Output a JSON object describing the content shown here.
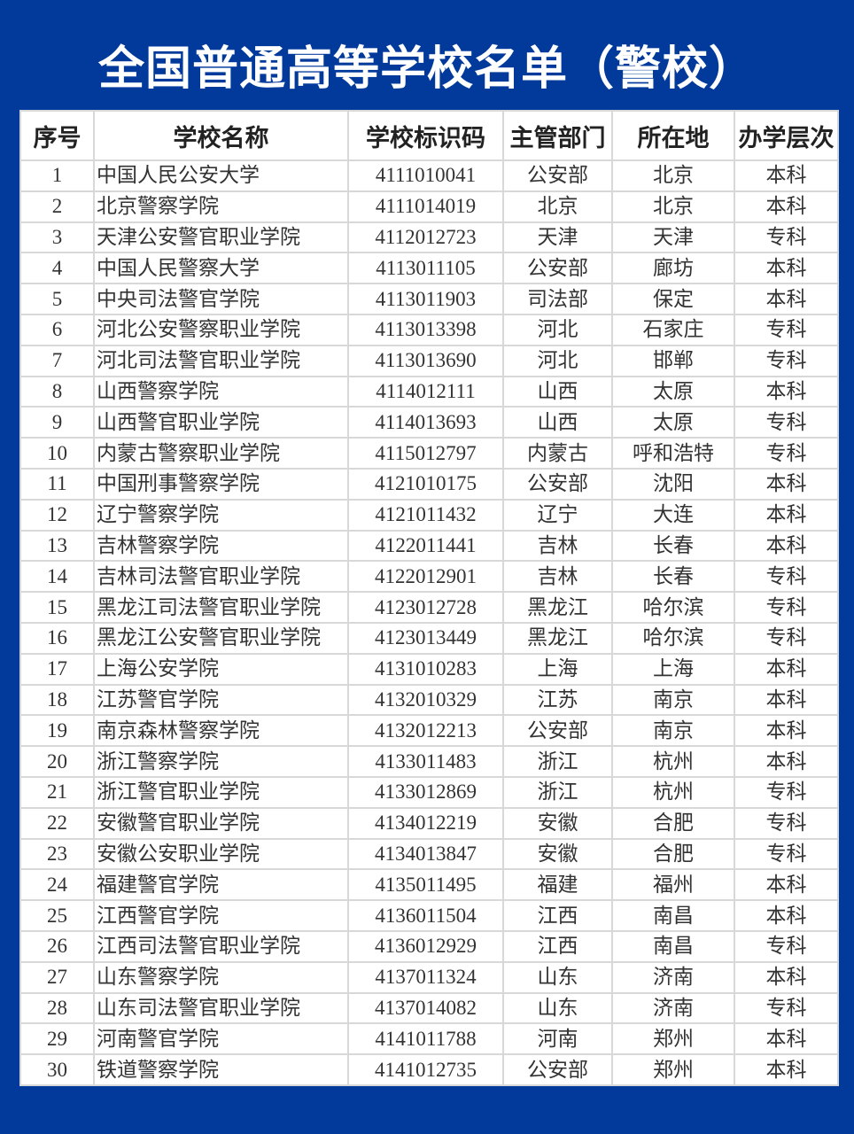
{
  "title": "全国普通高等学校名单（警校）",
  "table": {
    "headers": [
      "序号",
      "学校名称",
      "学校标识码",
      "主管部门",
      "所在地",
      "办学层次"
    ],
    "rows": [
      [
        "1",
        "中国人民公安大学",
        "4111010041",
        "公安部",
        "北京",
        "本科"
      ],
      [
        "2",
        "北京警察学院",
        "4111014019",
        "北京",
        "北京",
        "本科"
      ],
      [
        "3",
        "天津公安警官职业学院",
        "4112012723",
        "天津",
        "天津",
        "专科"
      ],
      [
        "4",
        "中国人民警察大学",
        "4113011105",
        "公安部",
        "廊坊",
        "本科"
      ],
      [
        "5",
        "中央司法警官学院",
        "4113011903",
        "司法部",
        "保定",
        "本科"
      ],
      [
        "6",
        "河北公安警察职业学院",
        "4113013398",
        "河北",
        "石家庄",
        "专科"
      ],
      [
        "7",
        "河北司法警官职业学院",
        "4113013690",
        "河北",
        "邯郸",
        "专科"
      ],
      [
        "8",
        "山西警察学院",
        "4114012111",
        "山西",
        "太原",
        "本科"
      ],
      [
        "9",
        "山西警官职业学院",
        "4114013693",
        "山西",
        "太原",
        "专科"
      ],
      [
        "10",
        "内蒙古警察职业学院",
        "4115012797",
        "内蒙古",
        "呼和浩特",
        "专科"
      ],
      [
        "11",
        "中国刑事警察学院",
        "4121010175",
        "公安部",
        "沈阳",
        "本科"
      ],
      [
        "12",
        "辽宁警察学院",
        "4121011432",
        "辽宁",
        "大连",
        "本科"
      ],
      [
        "13",
        "吉林警察学院",
        "4122011441",
        "吉林",
        "长春",
        "本科"
      ],
      [
        "14",
        "吉林司法警官职业学院",
        "4122012901",
        "吉林",
        "长春",
        "专科"
      ],
      [
        "15",
        "黑龙江司法警官职业学院",
        "4123012728",
        "黑龙江",
        "哈尔滨",
        "专科"
      ],
      [
        "16",
        "黑龙江公安警官职业学院",
        "4123013449",
        "黑龙江",
        "哈尔滨",
        "专科"
      ],
      [
        "17",
        "上海公安学院",
        "4131010283",
        "上海",
        "上海",
        "本科"
      ],
      [
        "18",
        "江苏警官学院",
        "4132010329",
        "江苏",
        "南京",
        "本科"
      ],
      [
        "19",
        "南京森林警察学院",
        "4132012213",
        "公安部",
        "南京",
        "本科"
      ],
      [
        "20",
        "浙江警察学院",
        "4133011483",
        "浙江",
        "杭州",
        "本科"
      ],
      [
        "21",
        "浙江警官职业学院",
        "4133012869",
        "浙江",
        "杭州",
        "专科"
      ],
      [
        "22",
        "安徽警官职业学院",
        "4134012219",
        "安徽",
        "合肥",
        "专科"
      ],
      [
        "23",
        "安徽公安职业学院",
        "4134013847",
        "安徽",
        "合肥",
        "专科"
      ],
      [
        "24",
        "福建警官学院",
        "4135011495",
        "福建",
        "福州",
        "本科"
      ],
      [
        "25",
        "江西警官学院",
        "4136011504",
        "江西",
        "南昌",
        "本科"
      ],
      [
        "26",
        "江西司法警官职业学院",
        "4136012929",
        "江西",
        "南昌",
        "专科"
      ],
      [
        "27",
        "山东警察学院",
        "4137011324",
        "山东",
        "济南",
        "本科"
      ],
      [
        "28",
        "山东司法警官职业学院",
        "4137014082",
        "山东",
        "济南",
        "专科"
      ],
      [
        "29",
        "河南警官学院",
        "4141011788",
        "河南",
        "郑州",
        "本科"
      ],
      [
        "30",
        "铁道警察学院",
        "4141012735",
        "公安部",
        "郑州",
        "本科"
      ]
    ]
  },
  "colors": {
    "background": "#023a9c",
    "title": "#ffffff",
    "grid": "#d8d8d8"
  }
}
